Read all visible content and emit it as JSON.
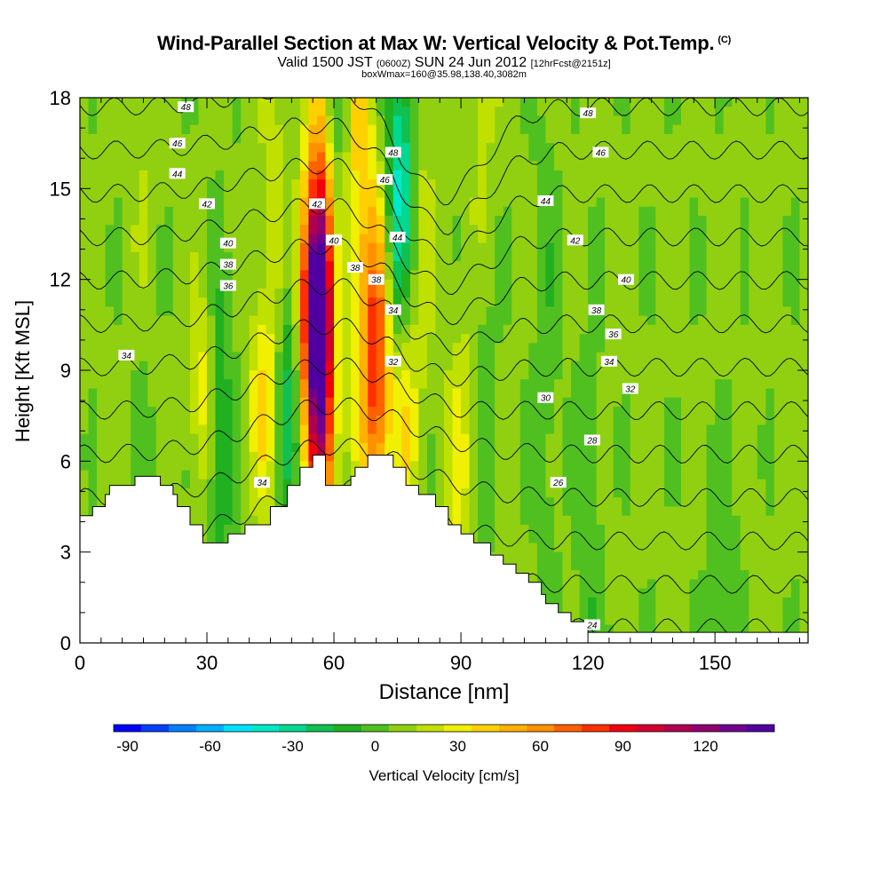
{
  "title": {
    "main": "Wind-Parallel Section at Max W: Vertical Velocity & Pot.Temp.",
    "copyright": "(C)",
    "valid_prefix": "Valid 1500 JST",
    "valid_utc": "(0600Z)",
    "valid_date": "SUN 24 Jun 2012",
    "forecast": "[12hrFcst@2151z]",
    "box_info": "boxWmax=160@35.98,138.40,3082m"
  },
  "chart_data": {
    "type": "contour",
    "xlabel": "Distance [nm]",
    "ylabel": "Height [Kft MSL]",
    "xlim": [
      0,
      172
    ],
    "ylim": [
      0,
      18
    ],
    "x_ticks": [
      0,
      30,
      60,
      90,
      120,
      150
    ],
    "y_ticks": [
      0,
      3,
      6,
      9,
      12,
      15,
      18
    ],
    "colorbar": {
      "label": "Vertical Velocity [cm/s]",
      "ticks": [
        -90,
        -60,
        -30,
        0,
        30,
        60,
        90,
        120
      ],
      "min": -95,
      "max": 145,
      "step": 10,
      "colors": [
        "#0000ff",
        "#0040ff",
        "#0080ff",
        "#00b0ff",
        "#00e0ff",
        "#00e8c8",
        "#00d890",
        "#10c050",
        "#20b020",
        "#50c020",
        "#90d010",
        "#c0e000",
        "#f0f000",
        "#ffd000",
        "#ffb000",
        "#ff9000",
        "#ff6000",
        "#ff3000",
        "#f00010",
        "#d00030",
        "#b00050",
        "#900070",
        "#700090",
        "#5000a0"
      ]
    },
    "terrain": [
      [
        0,
        4.2
      ],
      [
        3,
        4.2
      ],
      [
        3,
        4.5
      ],
      [
        6,
        4.5
      ],
      [
        6,
        4.9
      ],
      [
        7,
        4.9
      ],
      [
        7,
        5.2
      ],
      [
        13,
        5.2
      ],
      [
        13,
        5.5
      ],
      [
        19,
        5.5
      ],
      [
        19,
        5.2
      ],
      [
        22,
        5.2
      ],
      [
        22,
        4.9
      ],
      [
        23,
        4.9
      ],
      [
        23,
        4.5
      ],
      [
        26,
        4.5
      ],
      [
        26,
        3.9
      ],
      [
        29,
        3.9
      ],
      [
        29,
        3.3
      ],
      [
        35,
        3.3
      ],
      [
        35,
        3.6
      ],
      [
        39,
        3.6
      ],
      [
        39,
        3.9
      ],
      [
        45,
        3.9
      ],
      [
        45,
        4.5
      ],
      [
        49,
        4.5
      ],
      [
        49,
        5.2
      ],
      [
        52,
        5.2
      ],
      [
        52,
        5.8
      ],
      [
        55,
        5.8
      ],
      [
        55,
        6.2
      ],
      [
        58,
        6.2
      ],
      [
        58,
        5.2
      ],
      [
        64,
        5.2
      ],
      [
        64,
        5.5
      ],
      [
        65,
        5.5
      ],
      [
        65,
        5.8
      ],
      [
        68,
        5.8
      ],
      [
        68,
        6.2
      ],
      [
        74,
        6.2
      ],
      [
        74,
        5.8
      ],
      [
        77,
        5.8
      ],
      [
        77,
        5.2
      ],
      [
        80,
        5.2
      ],
      [
        80,
        4.9
      ],
      [
        84,
        4.9
      ],
      [
        84,
        4.5
      ],
      [
        87,
        4.5
      ],
      [
        87,
        3.9
      ],
      [
        90,
        3.9
      ],
      [
        90,
        3.6
      ],
      [
        93,
        3.6
      ],
      [
        93,
        3.3
      ],
      [
        97,
        3.3
      ],
      [
        97,
        2.9
      ],
      [
        100,
        2.9
      ],
      [
        100,
        2.6
      ],
      [
        103,
        2.6
      ],
      [
        103,
        2.3
      ],
      [
        106,
        2.3
      ],
      [
        106,
        2.0
      ],
      [
        109,
        2.0
      ],
      [
        109,
        1.6
      ],
      [
        110,
        1.6
      ],
      [
        110,
        1.3
      ],
      [
        113,
        1.3
      ],
      [
        113,
        1.0
      ],
      [
        116,
        1.0
      ],
      [
        116,
        0.7
      ],
      [
        120,
        0.7
      ],
      [
        120,
        0.35
      ],
      [
        172,
        0.35
      ],
      [
        172,
        0
      ],
      [
        0,
        0
      ]
    ],
    "updrafts": [
      {
        "x": 29,
        "y": 8.5,
        "w": 24,
        "z": 1.0
      },
      {
        "x": 43,
        "y": 8.0,
        "w": 24,
        "z": 1.1
      },
      {
        "x": 46,
        "y": 12.5,
        "w": 14,
        "z": 3.0
      },
      {
        "x": 57,
        "y": 9.5,
        "w": 110,
        "z": 2.4
      },
      {
        "x": 55,
        "y": 11.2,
        "w": 85,
        "z": 1.2
      },
      {
        "x": 70,
        "y": 9.2,
        "w": 75,
        "z": 1.6
      },
      {
        "x": 76,
        "y": 8.2,
        "w": 35,
        "z": 1.6
      },
      {
        "x": 66,
        "y": 15.5,
        "w": 30,
        "z": 2.5
      },
      {
        "x": 80,
        "y": 16.0,
        "w": 20,
        "z": 2.5
      },
      {
        "x": 90,
        "y": 6.0,
        "w": 20,
        "z": 1.5
      },
      {
        "x": 95,
        "y": 16.5,
        "w": 15,
        "z": 2.5
      },
      {
        "x": 15,
        "y": 14.5,
        "w": 12,
        "z": 2.5
      }
    ],
    "downdrafts": [
      {
        "x": 33,
        "y": 6.5,
        "w": -22,
        "z": 2.0
      },
      {
        "x": 49,
        "y": 8.0,
        "w": -32,
        "z": 1.4
      },
      {
        "x": 75,
        "y": 13.5,
        "w": -45,
        "z": 1.8
      },
      {
        "x": 78,
        "y": 15.8,
        "w": -25,
        "z": 1.5
      },
      {
        "x": 60,
        "y": 17.0,
        "w": -18,
        "z": 1.5
      },
      {
        "x": 95,
        "y": 9.5,
        "w": -15,
        "z": 2.0
      },
      {
        "x": 110,
        "y": 9.0,
        "w": -10,
        "z": 3.0
      },
      {
        "x": 15,
        "y": 9.0,
        "w": -10,
        "z": 2.5
      },
      {
        "x": 120,
        "y": 2.5,
        "w": -12,
        "z": 2.5
      },
      {
        "x": 152,
        "y": 1.5,
        "w": -14,
        "z": 1.5
      }
    ],
    "isentropes": [
      {
        "value": 24,
        "label": "24"
      },
      {
        "value": 26,
        "label": "26"
      },
      {
        "value": 28,
        "label": "28"
      },
      {
        "value": 30,
        "label": "30"
      },
      {
        "value": 32,
        "label": "32"
      },
      {
        "value": 34,
        "label": "34"
      },
      {
        "value": 36,
        "label": "36"
      },
      {
        "value": 38,
        "label": "38"
      },
      {
        "value": 40,
        "label": "40"
      },
      {
        "value": 42,
        "label": "42"
      },
      {
        "value": 44,
        "label": "44"
      },
      {
        "value": 46,
        "label": "46"
      },
      {
        "value": 48,
        "label": "48"
      }
    ],
    "isentrope_labels": [
      {
        "text": "48",
        "x": 25,
        "y": 17.7
      },
      {
        "text": "46",
        "x": 23,
        "y": 16.5
      },
      {
        "text": "44",
        "x": 23,
        "y": 15.5
      },
      {
        "text": "42",
        "x": 30,
        "y": 14.5
      },
      {
        "text": "40",
        "x": 35,
        "y": 13.2
      },
      {
        "text": "38",
        "x": 35,
        "y": 12.5
      },
      {
        "text": "36",
        "x": 35,
        "y": 11.8
      },
      {
        "text": "34",
        "x": 11,
        "y": 9.5
      },
      {
        "text": "34",
        "x": 43,
        "y": 5.3
      },
      {
        "text": "48",
        "x": 74,
        "y": 16.2
      },
      {
        "text": "46",
        "x": 72,
        "y": 15.3
      },
      {
        "text": "42",
        "x": 56,
        "y": 14.5
      },
      {
        "text": "40",
        "x": 60,
        "y": 13.3
      },
      {
        "text": "38",
        "x": 65,
        "y": 12.4
      },
      {
        "text": "38",
        "x": 70,
        "y": 12.0
      },
      {
        "text": "34",
        "x": 74,
        "y": 11.0
      },
      {
        "text": "44",
        "x": 75,
        "y": 13.4
      },
      {
        "text": "32",
        "x": 74,
        "y": 9.3
      },
      {
        "text": "48",
        "x": 120,
        "y": 17.5
      },
      {
        "text": "46",
        "x": 123,
        "y": 16.2
      },
      {
        "text": "44",
        "x": 110,
        "y": 14.6
      },
      {
        "text": "42",
        "x": 117,
        "y": 13.3
      },
      {
        "text": "40",
        "x": 129,
        "y": 12.0
      },
      {
        "text": "38",
        "x": 122,
        "y": 11.0
      },
      {
        "text": "36",
        "x": 126,
        "y": 10.2
      },
      {
        "text": "34",
        "x": 125,
        "y": 9.3
      },
      {
        "text": "32",
        "x": 130,
        "y": 8.4
      },
      {
        "text": "30",
        "x": 110,
        "y": 8.1
      },
      {
        "text": "28",
        "x": 121,
        "y": 6.7
      },
      {
        "text": "26",
        "x": 113,
        "y": 5.3
      },
      {
        "text": "24",
        "x": 121,
        "y": 0.6
      }
    ]
  }
}
